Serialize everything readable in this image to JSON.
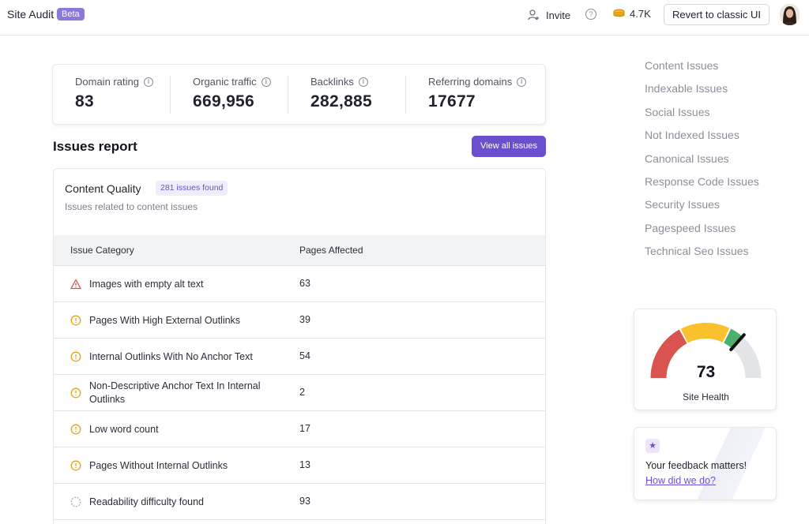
{
  "header": {
    "app_title": "Site Audit",
    "beta_badge": "Beta",
    "invite_label": "Invite",
    "help_glyph": "?",
    "credits": "4.7K",
    "revert_label": "Revert to classic UI"
  },
  "metrics": [
    {
      "label": "Domain rating",
      "value": "83",
      "info": "i"
    },
    {
      "label": "Organic traffic",
      "value": "669,956",
      "info": "i"
    },
    {
      "label": "Backlinks",
      "value": "282,885",
      "info": "i"
    },
    {
      "label": "Referring domains",
      "value": "17677",
      "info": "i"
    }
  ],
  "issues_report": {
    "title": "Issues report",
    "view_all_label": "View all issues",
    "section_title": "Content Quality",
    "issues_found": "281 issues found",
    "section_subtitle": "Issues related to content issues",
    "columns": [
      "Issue Category",
      "Pages Affected"
    ],
    "rows": [
      {
        "icon": "warning-triangle-icon",
        "label": "Images with empty alt text",
        "value": "63"
      },
      {
        "icon": "exclamation-circle-icon",
        "label": "Pages With High External Outlinks",
        "value": "39"
      },
      {
        "icon": "exclamation-circle-icon",
        "label": "Internal Outlinks With No Anchor Text",
        "value": "54"
      },
      {
        "icon": "exclamation-circle-icon",
        "label": "Non-Descriptive Anchor Text In Internal Outlinks",
        "value": "2"
      },
      {
        "icon": "exclamation-circle-icon",
        "label": "Low word count",
        "value": "17"
      },
      {
        "icon": "exclamation-circle-icon",
        "label": "Pages Without Internal Outlinks",
        "value": "13"
      },
      {
        "icon": "dashed-circle-icon",
        "label": "Readability difficulty found",
        "value": "93"
      }
    ]
  },
  "side_nav": {
    "items": [
      "Content Issues",
      "Indexable Issues",
      "Social Issues",
      "Not Indexed Issues",
      "Canonical Issues",
      "Response Code Issues",
      "Security Issues",
      "Pagespeed Issues",
      "Technical Seo Issues"
    ]
  },
  "site_health": {
    "value": "73",
    "level": 73,
    "label": "Site Health",
    "colors": {
      "red": "#d9534f",
      "yellow": "#fbc02d",
      "green": "#4caf6e",
      "grey": "#e4e5e9",
      "needle": "#111111"
    }
  },
  "feedback": {
    "star": "★",
    "title": "Your feedback matters!",
    "link": "How did we do?"
  },
  "colors": {
    "accent": "#6c4fcf",
    "beta": "#8c78d9",
    "warning_red": "#d9534f",
    "warning_orange": "#e8a317"
  }
}
